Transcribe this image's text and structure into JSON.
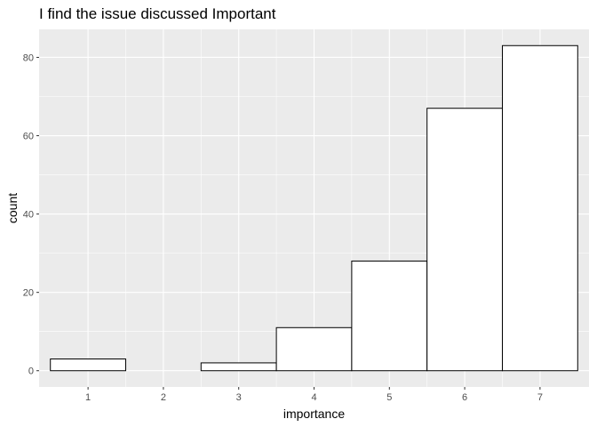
{
  "chart_data": {
    "type": "bar",
    "title": "I find the issue discussed Important",
    "xlabel": "importance",
    "ylabel": "count",
    "categories": [
      "1",
      "2",
      "3",
      "4",
      "5",
      "6",
      "7"
    ],
    "values": [
      3,
      0,
      2,
      11,
      28,
      67,
      83
    ],
    "y_ticks": [
      0,
      20,
      40,
      60,
      80
    ],
    "ylim": [
      -4.15,
      87.15
    ],
    "xlim": [
      0.35,
      7.65
    ],
    "grid": true,
    "legend": "none",
    "colors": {
      "panel_background": "#ebebeb",
      "grid_major": "#ffffff",
      "bar_fill": "#ffffff",
      "bar_outline": "#000000"
    }
  }
}
